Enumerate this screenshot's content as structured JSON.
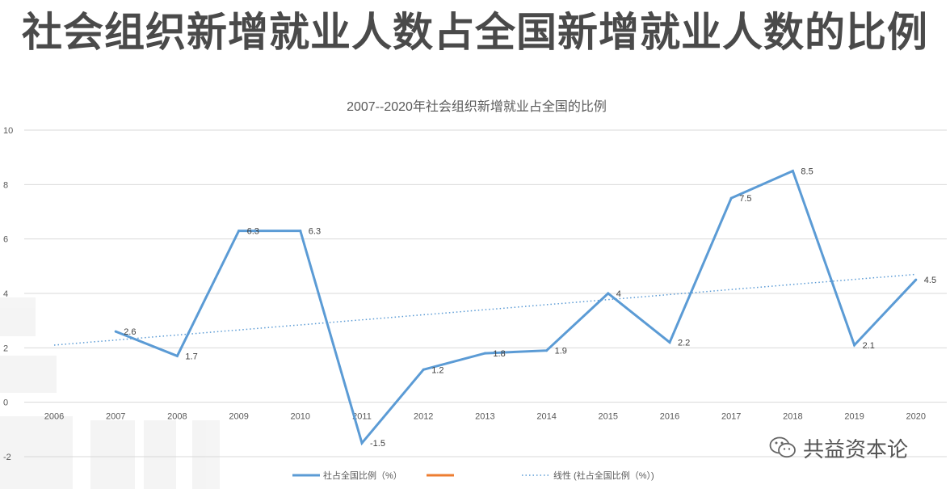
{
  "page": {
    "title": "社会组织新增就业人数占全国新增就业人数的比例"
  },
  "brand": {
    "name": "共益资本论",
    "icon": "wechat-icon"
  },
  "colors": {
    "series": "#5b9bd5",
    "trend": "#5b9bd5",
    "legend_orange": "#ed7d31",
    "grid": "#d9d9d9",
    "text": "#595959",
    "title": "#4a4a4a"
  },
  "chart_data": {
    "type": "line",
    "title": "2007--2020年社会组织新增就业占全国的比例",
    "categories": [
      "2006",
      "2007",
      "2008",
      "2009",
      "2010",
      "2011",
      "2012",
      "2013",
      "2014",
      "2015",
      "2016",
      "2017",
      "2018",
      "2019",
      "2020"
    ],
    "yticks": [
      "10",
      "8",
      "6",
      "4",
      "2",
      "0",
      "-2"
    ],
    "ylim": [
      -2,
      10
    ],
    "grid": true,
    "legend_position": "bottom",
    "series": [
      {
        "name": "社占全国比例（%）",
        "x": [
          "2007",
          "2008",
          "2009",
          "2010",
          "2011",
          "2012",
          "2013",
          "2014",
          "2015",
          "2016",
          "2017",
          "2018",
          "2019",
          "2020"
        ],
        "values": [
          2.6,
          1.7,
          6.3,
          6.3,
          -1.5,
          1.2,
          1.8,
          1.9,
          4,
          2.2,
          7.5,
          8.5,
          2.1,
          4.5
        ],
        "labels": [
          "2.6",
          "1.7",
          "6.3",
          "6.3",
          "-1.5",
          "1.2",
          "1.8",
          "1.9",
          "4",
          "2.2",
          "7.5",
          "8.5",
          "2.1",
          "4.5"
        ]
      }
    ],
    "trendline": {
      "name": "线性 (社占全国比例（%）)",
      "from": {
        "x": "2006",
        "y": 2.1
      },
      "to": {
        "x": "2020",
        "y": 4.7
      }
    },
    "legend": [
      {
        "label": "社占全国比例（%）",
        "style": "solid"
      },
      {
        "label": "",
        "style": "solid-orange"
      },
      {
        "label": "线性 (社占全国比例（%）)",
        "style": "dotted"
      }
    ]
  }
}
